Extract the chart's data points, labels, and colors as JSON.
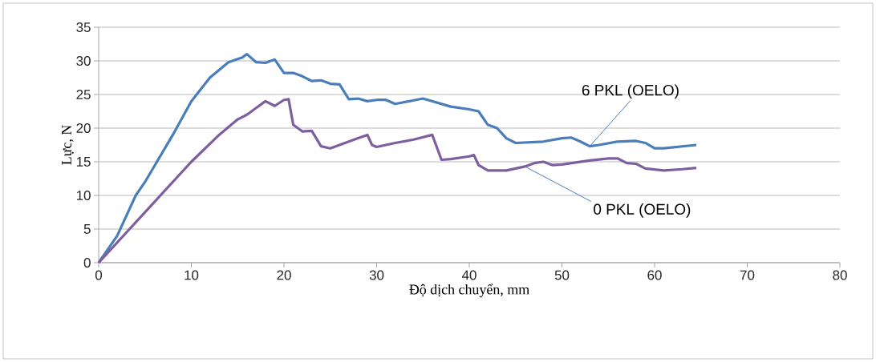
{
  "chart_data": {
    "type": "line",
    "xlabel": "Độ dịch chuyển, mm",
    "ylabel": "Lực, N",
    "xlim": [
      0,
      80
    ],
    "xticks": [
      0,
      10,
      20,
      30,
      40,
      50,
      60,
      70,
      80
    ],
    "ylim": [
      0,
      35
    ],
    "yticks": [
      0,
      5,
      10,
      15,
      20,
      25,
      30,
      35
    ],
    "grid": "y",
    "legend": false,
    "marker": "none",
    "line_style": "solid",
    "series": [
      {
        "name": "6 PKL (OELO)",
        "color": "#4a7ebb",
        "x": [
          0,
          2,
          4,
          5,
          8,
          10,
          12,
          14,
          15.5,
          16,
          17,
          18,
          19,
          20,
          21,
          22,
          23,
          24,
          25,
          26,
          27,
          28,
          29,
          30,
          31,
          32,
          35,
          36,
          38,
          40,
          41,
          42,
          43,
          44,
          45,
          48,
          50,
          51,
          52,
          53,
          54,
          56,
          58,
          59,
          60,
          61,
          64.5
        ],
        "values": [
          0,
          4,
          10,
          12,
          19,
          24,
          27.5,
          29.8,
          30.5,
          31,
          29.8,
          29.7,
          30.2,
          28.2,
          28.2,
          27.7,
          27,
          27.1,
          26.6,
          26.5,
          24.3,
          24.4,
          24,
          24.2,
          24.2,
          23.6,
          24.4,
          24,
          23.2,
          22.8,
          22.5,
          20.5,
          20,
          18.5,
          17.8,
          18,
          18.5,
          18.6,
          18,
          17.3,
          17.5,
          18,
          18.1,
          17.8,
          17,
          17,
          17.5
        ]
      },
      {
        "name": "0 PKL (OELO)",
        "color": "#7d5fa0",
        "x": [
          0,
          5,
          10,
          13,
          15,
          16,
          17,
          18,
          19,
          20,
          20.5,
          21,
          22,
          23,
          24,
          25,
          26,
          28,
          29,
          29.5,
          30,
          32,
          34,
          36,
          37,
          38,
          40,
          40.5,
          41,
          42,
          44,
          46,
          47,
          48,
          49,
          50,
          53,
          55,
          56,
          57,
          58,
          59,
          61,
          63,
          64.5
        ],
        "values": [
          0,
          7.5,
          15,
          19,
          21.3,
          22,
          23,
          24,
          23.3,
          24.2,
          24.3,
          20.5,
          19.5,
          19.6,
          17.3,
          17,
          17.5,
          18.5,
          19,
          17.5,
          17.2,
          17.8,
          18.3,
          19,
          15.3,
          15.4,
          15.8,
          16,
          14.5,
          13.7,
          13.7,
          14.3,
          14.8,
          15,
          14.5,
          14.6,
          15.2,
          15.5,
          15.5,
          14.8,
          14.7,
          14,
          13.7,
          13.9,
          14.1
        ]
      }
    ]
  }
}
